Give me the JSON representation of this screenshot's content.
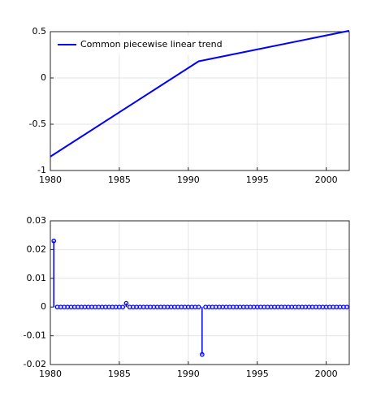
{
  "chart_data": [
    {
      "type": "line",
      "x": [
        1980,
        1990.75,
        2001.67
      ],
      "series": [
        {
          "name": "Common piecewise linear trend",
          "color": "#0000ff",
          "values": [
            -0.85,
            0.18,
            0.51
          ]
        }
      ],
      "xlim": [
        1980,
        2001.67
      ],
      "ylim": [
        -1,
        0.5
      ],
      "xticks": [
        1980,
        1985,
        1990,
        1995,
        2000
      ],
      "yticks": [
        -1,
        -0.5,
        0,
        0.5
      ],
      "grid": true,
      "legend": "upper left"
    },
    {
      "type": "stem",
      "x": [
        1980.25,
        1980.5,
        1980.75,
        1981,
        1981.25,
        1981.5,
        1981.75,
        1982,
        1982.25,
        1982.5,
        1982.75,
        1983,
        1983.25,
        1983.5,
        1983.75,
        1984,
        1984.25,
        1984.5,
        1984.75,
        1985,
        1985.25,
        1985.5,
        1985.75,
        1986,
        1986.25,
        1986.5,
        1986.75,
        1987,
        1987.25,
        1987.5,
        1987.75,
        1988,
        1988.25,
        1988.5,
        1988.75,
        1989,
        1989.25,
        1989.5,
        1989.75,
        1990,
        1990.25,
        1990.5,
        1990.75,
        1991,
        1991.25,
        1991.5,
        1991.75,
        1992,
        1992.25,
        1992.5,
        1992.75,
        1993,
        1993.25,
        1993.5,
        1993.75,
        1994,
        1994.25,
        1994.5,
        1994.75,
        1995,
        1995.25,
        1995.5,
        1995.75,
        1996,
        1996.25,
        1996.5,
        1996.75,
        1997,
        1997.25,
        1997.5,
        1997.75,
        1998,
        1998.25,
        1998.5,
        1998.75,
        1999,
        1999.25,
        1999.5,
        1999.75,
        2000,
        2000.25,
        2000.5,
        2000.75,
        2001,
        2001.25,
        2001.5
      ],
      "series": [
        {
          "color": "#0000ff",
          "values": [
            0.023,
            0,
            0,
            0,
            0,
            0,
            0,
            0,
            0,
            0,
            0,
            0,
            0,
            0,
            0,
            0,
            0,
            0,
            0,
            0,
            0,
            0.0013,
            0,
            0,
            0,
            0,
            0,
            0,
            0,
            0,
            0,
            0,
            0,
            0,
            0,
            0,
            0,
            0,
            0,
            0,
            0,
            0,
            0,
            -0.0165,
            0,
            0,
            0,
            0,
            0,
            0,
            0,
            0,
            0,
            0,
            0,
            0,
            0,
            0,
            0,
            0,
            0,
            0,
            0,
            0,
            0,
            0,
            0,
            0,
            0,
            0,
            0,
            0,
            0,
            0,
            0,
            0,
            0,
            0,
            0,
            0,
            0,
            0,
            0,
            0,
            0,
            0
          ]
        }
      ],
      "xlim": [
        1980,
        2001.67
      ],
      "ylim": [
        -0.02,
        0.03
      ],
      "xticks": [
        1980,
        1985,
        1990,
        1995,
        2000
      ],
      "yticks": [
        -0.02,
        -0.01,
        0,
        0.01,
        0.02,
        0.03
      ],
      "grid": true
    }
  ]
}
